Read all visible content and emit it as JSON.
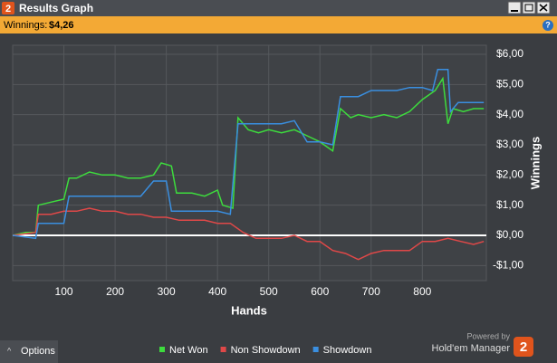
{
  "window": {
    "title": "Results Graph",
    "icon": "2",
    "winnings_label": "Winnings:",
    "winnings_value": "$4,26",
    "help": "?"
  },
  "chart_data": {
    "type": "line",
    "xlabel": "Hands",
    "ylabel": "Winnings",
    "xlim": [
      0,
      925
    ],
    "xticks": [
      100,
      200,
      300,
      400,
      500,
      600,
      700,
      800
    ],
    "ylim": [
      -1.5,
      6.3
    ],
    "yticks": [
      {
        "value": 6,
        "label": "$6,00"
      },
      {
        "value": 5,
        "label": "$5,00"
      },
      {
        "value": 4,
        "label": "$4,00"
      },
      {
        "value": 3,
        "label": "$3,00"
      },
      {
        "value": 2,
        "label": "$2,00"
      },
      {
        "value": 1,
        "label": "$1,00"
      },
      {
        "value": 0,
        "label": "$0,00"
      },
      {
        "value": -1,
        "label": "-$1,00"
      }
    ],
    "grid": true,
    "series": [
      {
        "name": "Net Won",
        "color": "#3ddc3d",
        "x": [
          0,
          25,
          45,
          50,
          75,
          100,
          110,
          125,
          150,
          175,
          200,
          225,
          250,
          275,
          290,
          310,
          320,
          350,
          375,
          400,
          410,
          430,
          440,
          460,
          480,
          500,
          525,
          550,
          575,
          600,
          625,
          640,
          660,
          675,
          700,
          725,
          750,
          775,
          800,
          825,
          840,
          850,
          860,
          880,
          900,
          920
        ],
        "values": [
          0,
          0.1,
          0.1,
          1.0,
          1.1,
          1.2,
          1.9,
          1.9,
          2.1,
          2.0,
          2.0,
          1.9,
          1.9,
          2.0,
          2.4,
          2.3,
          1.4,
          1.4,
          1.3,
          1.5,
          1.0,
          0.9,
          3.9,
          3.5,
          3.4,
          3.5,
          3.4,
          3.5,
          3.3,
          3.1,
          2.8,
          4.2,
          3.9,
          4.0,
          3.9,
          4.0,
          3.9,
          4.1,
          4.5,
          4.8,
          5.2,
          3.7,
          4.2,
          4.1,
          4.2,
          4.2
        ]
      },
      {
        "name": "Non Showdown",
        "color": "#e04848",
        "x": [
          0,
          45,
          50,
          75,
          100,
          125,
          150,
          175,
          200,
          225,
          250,
          275,
          300,
          325,
          350,
          375,
          400,
          425,
          450,
          475,
          500,
          525,
          550,
          575,
          600,
          625,
          650,
          675,
          700,
          725,
          750,
          775,
          800,
          825,
          850,
          875,
          900,
          920
        ],
        "values": [
          0,
          0.1,
          0.7,
          0.7,
          0.8,
          0.8,
          0.9,
          0.8,
          0.8,
          0.7,
          0.7,
          0.6,
          0.6,
          0.5,
          0.5,
          0.5,
          0.4,
          0.4,
          0.1,
          -0.1,
          -0.1,
          -0.1,
          0.0,
          -0.2,
          -0.2,
          -0.5,
          -0.6,
          -0.8,
          -0.6,
          -0.5,
          -0.5,
          -0.5,
          -0.2,
          -0.2,
          -0.1,
          -0.2,
          -0.3,
          -0.2
        ]
      },
      {
        "name": "Showdown",
        "color": "#3a8fe0",
        "x": [
          0,
          45,
          50,
          100,
          110,
          150,
          200,
          250,
          275,
          300,
          310,
          350,
          400,
          425,
          440,
          475,
          500,
          525,
          550,
          575,
          600,
          625,
          640,
          675,
          700,
          750,
          775,
          800,
          820,
          830,
          850,
          855,
          870,
          920
        ],
        "values": [
          0,
          -0.1,
          0.4,
          0.4,
          1.3,
          1.3,
          1.3,
          1.3,
          1.8,
          1.8,
          0.8,
          0.8,
          0.8,
          0.7,
          3.7,
          3.7,
          3.7,
          3.7,
          3.8,
          3.1,
          3.1,
          3.0,
          4.6,
          4.6,
          4.8,
          4.8,
          4.9,
          4.9,
          4.8,
          5.5,
          5.5,
          4.1,
          4.4,
          4.4
        ]
      }
    ]
  },
  "footer": {
    "options": "Options",
    "powered_by": "Powered by",
    "brand": "Hold'em Manager",
    "brand_icon": "2"
  }
}
